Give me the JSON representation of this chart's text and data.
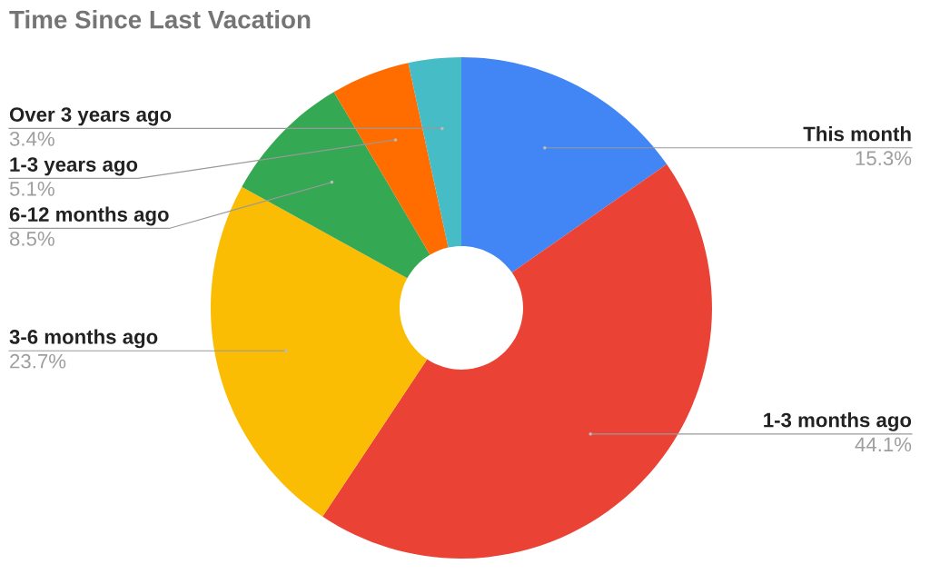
{
  "chart_data": {
    "type": "donut",
    "title": "Time Since Last Vacation",
    "categories": [
      "This month",
      "1-3 months ago",
      "3-6 months ago",
      "6-12 months ago",
      "1-3 years ago",
      "Over 3 years ago"
    ],
    "values": [
      15.3,
      44.1,
      23.7,
      8.5,
      5.1,
      3.4
    ],
    "value_labels": [
      "15.3%",
      "44.1%",
      "23.7%",
      "8.5%",
      "5.1%",
      "3.4%"
    ],
    "colors": [
      "#4285f4",
      "#ea4335",
      "#fbbc04",
      "#34a853",
      "#ff6d01",
      "#46bdc6"
    ],
    "legend": false
  }
}
